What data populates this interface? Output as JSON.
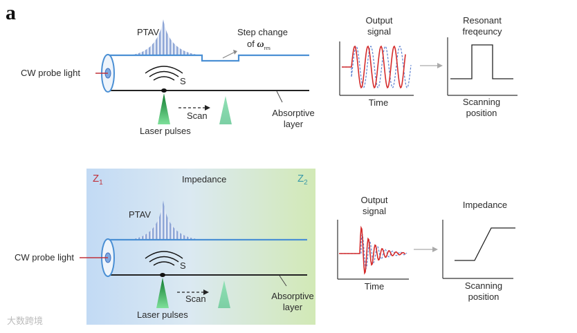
{
  "panel_label": "a",
  "top": {
    "ptav": "PTAV",
    "step_change_line1": "Step change",
    "step_change_line2": "of",
    "omega": "ω",
    "omega_sub": "res",
    "cw_probe": "CW probe light",
    "s_label": "S",
    "scan": "Scan",
    "laser": "Laser pulses",
    "absorptive_line1": "Absorptive",
    "absorptive_line2": "layer",
    "signal_title_line1": "Output",
    "signal_title_line2": "signal",
    "signal_xlabel": "Time",
    "freq_title_line1": "Resonant",
    "freq_title_line2": "freqeuncy",
    "freq_xlabel_line1": "Scanning",
    "freq_xlabel_line2": "position"
  },
  "bottom": {
    "z1": "Z",
    "z1_sub": "1",
    "z2": "Z",
    "z2_sub": "2",
    "impedance_top": "Impedance",
    "ptav": "PTAV",
    "cw_probe": "CW probe light",
    "s_label": "S",
    "scan": "Scan",
    "laser": "Laser pulses",
    "absorptive_line1": "Absorptive",
    "absorptive_line2": "layer",
    "signal_title_line1": "Output",
    "signal_title_line2": "signal",
    "signal_xlabel": "Time",
    "imp_title": "Impedance",
    "imp_xlabel_line1": "Scanning",
    "imp_xlabel_line2": "position"
  },
  "watermark": "大数跨境",
  "colors": {
    "fiber": "#4a8fd4",
    "red_signal": "#d42a2a",
    "blue_dashed": "#5a7fd0",
    "laser_green": "#2ea850",
    "scanned_green": "#7fd6a8",
    "bg_left": "#c4dcf4",
    "bg_right": "#d4eab8",
    "z1_color": "#c0303a",
    "z2_color": "#3a9aa8"
  }
}
